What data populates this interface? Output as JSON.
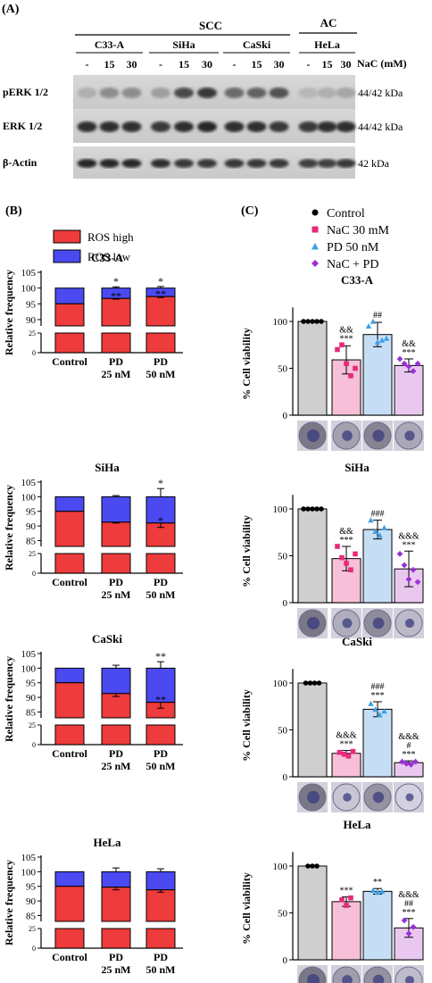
{
  "panelA": {
    "label": "(A)",
    "group_scc": "SCC",
    "group_ac": "AC",
    "cell_lines": [
      "C33-A",
      "SiHa",
      "CaSki",
      "HeLa"
    ],
    "lane_labels": [
      "-",
      "15",
      "30"
    ],
    "nac_label": "NaC (mM)",
    "rows": [
      {
        "name": "pERK 1/2",
        "kda": "44/42 kDa"
      },
      {
        "name": "ERK 1/2",
        "kda": "44/42 kDa"
      },
      {
        "name": "β-Actin",
        "kda": "42 kDa"
      }
    ]
  },
  "panelB": {
    "label": "(B)",
    "legend": [
      {
        "name": "ROS high",
        "color": "#ee3b3b"
      },
      {
        "name": "ROS low",
        "color": "#4a4af0"
      }
    ],
    "ylabel": "Relative frequency",
    "categories": [
      "Control",
      "PD 25 nM",
      "PD 50 nM"
    ],
    "cat_lines": [
      [
        "Control"
      ],
      [
        "PD",
        "25 nM"
      ],
      [
        "PD",
        "50 nM"
      ]
    ],
    "upper_ticks": [
      "85",
      "90",
      "95",
      "100",
      "105"
    ],
    "lower_ticks": [
      "0",
      "25"
    ],
    "charts": [
      {
        "title": "C33-A",
        "upper_ticks": [
          "90",
          "95",
          "100",
          "105"
        ],
        "top_ticks": [
          "105",
          "100",
          "95",
          "90"
        ],
        "high": [
          95,
          96.7,
          97.3
        ],
        "total_err": [
          0,
          0.4,
          0.5
        ],
        "high_err": [
          0,
          0.2,
          0.3
        ],
        "star_top": [
          "",
          "*",
          "*"
        ],
        "star_in": [
          "",
          "**",
          "**"
        ]
      },
      {
        "title": "SiHa",
        "high": [
          95,
          91.3,
          91
        ],
        "total_err": [
          0,
          0.4,
          2.8
        ],
        "high_err": [
          0,
          0.3,
          1.5
        ],
        "star_top": [
          "",
          "",
          "*"
        ],
        "star_in": [
          "",
          "",
          "*"
        ]
      },
      {
        "title": "CaSki",
        "high": [
          95,
          91.3,
          88.3
        ],
        "total_err": [
          0,
          1,
          2.2
        ],
        "high_err": [
          0,
          1,
          2
        ],
        "star_top": [
          "",
          "",
          "**"
        ],
        "star_in": [
          "",
          "",
          "**"
        ]
      },
      {
        "title": "HeLa",
        "high": [
          95,
          94.7,
          93.8
        ],
        "total_err": [
          0,
          1.3,
          1.0
        ],
        "high_err": [
          0,
          0.9,
          0.8
        ],
        "star_top": [
          "",
          "",
          ""
        ],
        "star_in": [
          "",
          "",
          ""
        ]
      }
    ]
  },
  "panelC": {
    "label": "(C)",
    "legend": [
      {
        "name": "Control",
        "color": "#000000",
        "marker": "circle"
      },
      {
        "name": "NaC 30 mM",
        "color": "#e8297a",
        "marker": "square"
      },
      {
        "name": "PD 50 nM",
        "color": "#3ea0e6",
        "marker": "triangle"
      },
      {
        "name": "NaC + PD",
        "color": "#9b2fd6",
        "marker": "diamond"
      }
    ],
    "ylabel": "% Cell viability",
    "yticks": [
      "0",
      "50",
      "100"
    ],
    "bar_fill": [
      "#cfcfcf",
      "#f7bfd8",
      "#c6def5",
      "#e9c8ef"
    ],
    "charts": [
      {
        "title": "C33-A",
        "means": [
          100,
          59,
          86,
          53
        ],
        "errs": [
          0,
          15,
          13,
          7
        ],
        "points": [
          [
            100,
            100,
            100,
            100,
            100
          ],
          [
            70,
            75,
            55,
            42,
            50
          ],
          [
            95,
            100,
            78,
            80,
            82
          ],
          [
            60,
            55,
            52,
            47,
            55
          ]
        ],
        "annots": [
          [],
          [
            "&&",
            "***"
          ],
          [
            "##"
          ],
          [
            "&&",
            "***"
          ]
        ]
      },
      {
        "title": "SiHa",
        "means": [
          100,
          47,
          78,
          36
        ],
        "errs": [
          0,
          13,
          10,
          19
        ],
        "points": [
          [
            100,
            100,
            100,
            100,
            100
          ],
          [
            60,
            48,
            42,
            35,
            52
          ],
          [
            88,
            76,
            72,
            80
          ],
          [
            52,
            40,
            25,
            35,
            22
          ]
        ],
        "annots": [
          [],
          [
            "&&",
            "***"
          ],
          [
            "###"
          ],
          [
            "&&&",
            "***"
          ]
        ]
      },
      {
        "title": "CaSki",
        "means": [
          100,
          25,
          72,
          15
        ],
        "errs": [
          0,
          3,
          8,
          2
        ],
        "points": [
          [
            100,
            100,
            100,
            100
          ],
          [
            26,
            24,
            22,
            27
          ],
          [
            78,
            72,
            66,
            70
          ],
          [
            16,
            14,
            13,
            16
          ]
        ],
        "annots": [
          [],
          [
            "&&&",
            "***"
          ],
          [
            "###",
            "***"
          ],
          [
            "&&&",
            "#",
            "***"
          ]
        ]
      },
      {
        "title": "HeLa",
        "means": [
          100,
          62,
          73,
          34
        ],
        "errs": [
          0,
          5,
          3,
          10
        ],
        "points": [
          [
            100,
            100,
            100
          ],
          [
            64,
            58,
            66
          ],
          [
            74,
            72,
            73
          ],
          [
            42,
            28,
            35
          ]
        ],
        "annots": [
          [],
          [
            "***"
          ],
          [
            "**"
          ],
          [
            "&&&",
            "##",
            "***"
          ]
        ]
      }
    ]
  }
}
